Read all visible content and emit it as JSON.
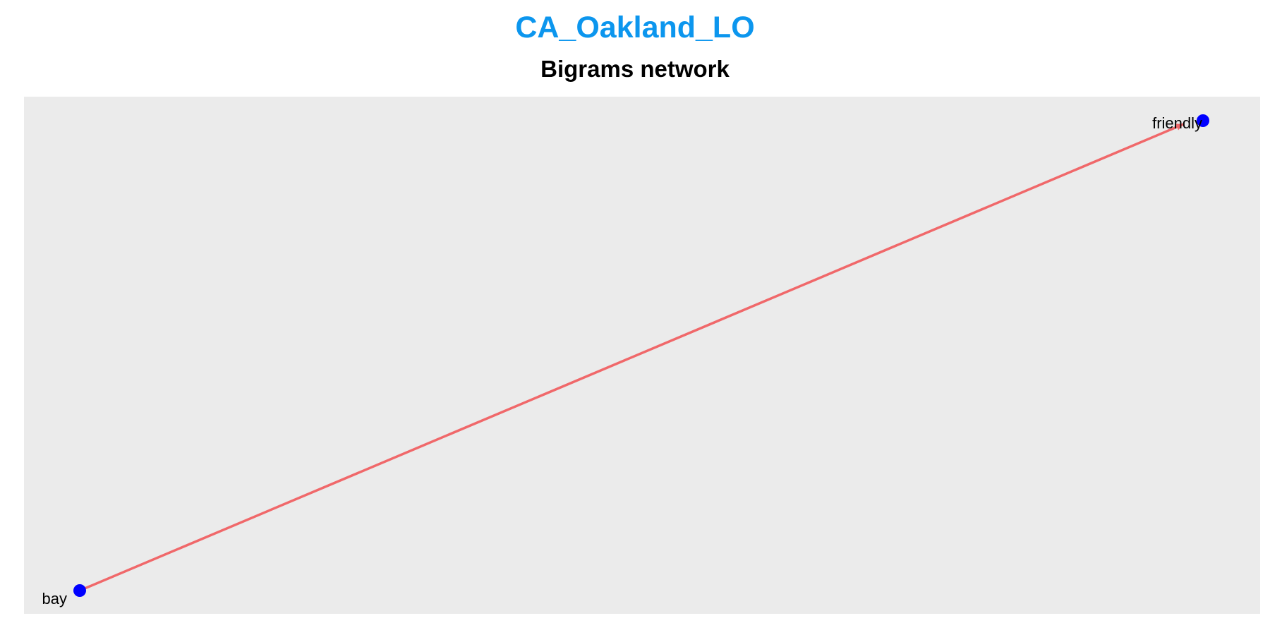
{
  "header": {
    "title": "CA_Oakland_LO",
    "subtitle": "Bigrams network"
  },
  "colors": {
    "title": "#0c96ee",
    "panel_background": "#ebebeb",
    "node": "#0000ff",
    "edge": "#f0686a",
    "label": "#000000"
  },
  "network": {
    "directed": true,
    "nodes": [
      {
        "id": "bay",
        "label": "bay"
      },
      {
        "id": "friendly",
        "label": "friendly"
      }
    ],
    "edges": [
      {
        "from": "bay",
        "to": "friendly"
      }
    ]
  }
}
